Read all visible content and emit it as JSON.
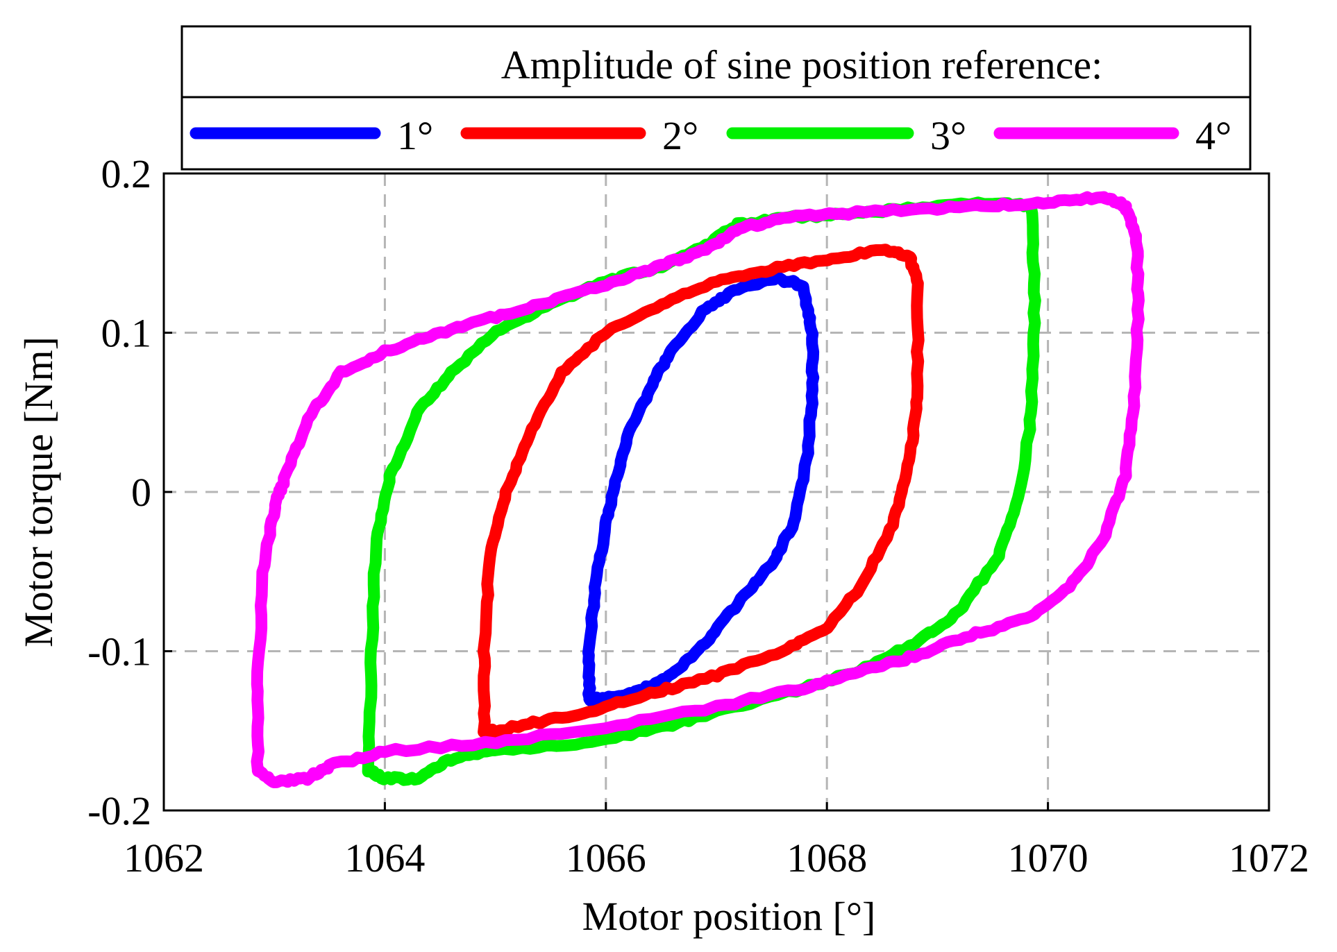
{
  "chart_data": {
    "type": "line",
    "title": "",
    "xlabel": "Motor position [°]",
    "ylabel": "Motor torque [Nm]",
    "xlim": [
      1062,
      1072
    ],
    "ylim": [
      -0.2,
      0.2
    ],
    "grid": true,
    "x_ticks": [
      1062,
      1064,
      1066,
      1068,
      1070,
      1072
    ],
    "x_tick_labels": [
      "1062",
      "1064",
      "1066",
      "1068",
      "1070",
      "1072"
    ],
    "y_ticks": [
      -0.2,
      -0.1,
      0,
      0.1,
      0.2
    ],
    "y_tick_labels": [
      "-0.2",
      "-0.1",
      "0",
      "0.1",
      "0.2"
    ],
    "legend": {
      "title": "Amplitude of sine position reference:",
      "placement": "top",
      "entries": [
        "1°",
        "2°",
        "3°",
        "4°"
      ]
    },
    "series": [
      {
        "name": "1°",
        "color": "#0000ff",
        "points": [
          [
            1065.85,
            -0.13
          ],
          [
            1065.85,
            -0.1
          ],
          [
            1065.9,
            -0.06
          ],
          [
            1066.0,
            -0.02
          ],
          [
            1066.1,
            0.01
          ],
          [
            1066.2,
            0.035
          ],
          [
            1066.4,
            0.065
          ],
          [
            1066.6,
            0.09
          ],
          [
            1066.9,
            0.115
          ],
          [
            1067.2,
            0.128
          ],
          [
            1067.55,
            0.134
          ],
          [
            1067.78,
            0.13
          ],
          [
            1067.87,
            0.1
          ],
          [
            1067.87,
            0.06
          ],
          [
            1067.82,
            0.02
          ],
          [
            1067.7,
            -0.02
          ],
          [
            1067.5,
            -0.045
          ],
          [
            1067.2,
            -0.07
          ],
          [
            1066.9,
            -0.095
          ],
          [
            1066.6,
            -0.115
          ],
          [
            1066.3,
            -0.125
          ],
          [
            1066.0,
            -0.13
          ],
          [
            1065.85,
            -0.13
          ]
        ]
      },
      {
        "name": "2°",
        "color": "#ff0000",
        "points": [
          [
            1064.9,
            -0.15
          ],
          [
            1064.9,
            -0.1
          ],
          [
            1064.95,
            -0.04
          ],
          [
            1065.1,
            0.0
          ],
          [
            1065.3,
            0.035
          ],
          [
            1065.6,
            0.075
          ],
          [
            1066.0,
            0.1
          ],
          [
            1066.5,
            0.118
          ],
          [
            1067.0,
            0.132
          ],
          [
            1067.5,
            0.14
          ],
          [
            1068.0,
            0.146
          ],
          [
            1068.5,
            0.152
          ],
          [
            1068.75,
            0.148
          ],
          [
            1068.82,
            0.13
          ],
          [
            1068.82,
            0.06
          ],
          [
            1068.75,
            0.02
          ],
          [
            1068.6,
            -0.02
          ],
          [
            1068.3,
            -0.06
          ],
          [
            1068.0,
            -0.085
          ],
          [
            1067.6,
            -0.1
          ],
          [
            1067.0,
            -0.115
          ],
          [
            1066.5,
            -0.125
          ],
          [
            1066.0,
            -0.135
          ],
          [
            1065.5,
            -0.143
          ],
          [
            1065.0,
            -0.15
          ],
          [
            1064.9,
            -0.15
          ]
        ]
      },
      {
        "name": "3°",
        "color": "#00f000",
        "points": [
          [
            1063.85,
            -0.175
          ],
          [
            1063.88,
            -0.1
          ],
          [
            1063.92,
            -0.03
          ],
          [
            1064.05,
            0.01
          ],
          [
            1064.3,
            0.05
          ],
          [
            1064.6,
            0.075
          ],
          [
            1065.0,
            0.1
          ],
          [
            1065.5,
            0.118
          ],
          [
            1066.0,
            0.132
          ],
          [
            1066.5,
            0.142
          ],
          [
            1066.9,
            0.155
          ],
          [
            1067.2,
            0.168
          ],
          [
            1067.6,
            0.172
          ],
          [
            1068.2,
            0.175
          ],
          [
            1068.8,
            0.178
          ],
          [
            1069.5,
            0.182
          ],
          [
            1069.85,
            0.18
          ],
          [
            1069.88,
            0.12
          ],
          [
            1069.85,
            0.05
          ],
          [
            1069.75,
            0.0
          ],
          [
            1069.55,
            -0.04
          ],
          [
            1069.2,
            -0.075
          ],
          [
            1068.8,
            -0.095
          ],
          [
            1068.3,
            -0.112
          ],
          [
            1067.8,
            -0.123
          ],
          [
            1067.0,
            -0.138
          ],
          [
            1066.5,
            -0.148
          ],
          [
            1065.8,
            -0.158
          ],
          [
            1065.0,
            -0.162
          ],
          [
            1064.6,
            -0.168
          ],
          [
            1064.3,
            -0.18
          ],
          [
            1064.0,
            -0.18
          ],
          [
            1063.85,
            -0.175
          ]
        ]
      },
      {
        "name": "4°",
        "color": "#ff00ff",
        "points": [
          [
            1062.85,
            -0.175
          ],
          [
            1062.85,
            -0.12
          ],
          [
            1062.9,
            -0.05
          ],
          [
            1063.0,
            -0.01
          ],
          [
            1063.1,
            0.01
          ],
          [
            1063.3,
            0.045
          ],
          [
            1063.6,
            0.075
          ],
          [
            1064.0,
            0.088
          ],
          [
            1064.5,
            0.1
          ],
          [
            1065.0,
            0.11
          ],
          [
            1065.5,
            0.12
          ],
          [
            1066.0,
            0.13
          ],
          [
            1066.5,
            0.142
          ],
          [
            1066.9,
            0.152
          ],
          [
            1067.2,
            0.165
          ],
          [
            1067.6,
            0.172
          ],
          [
            1068.2,
            0.175
          ],
          [
            1069.0,
            0.178
          ],
          [
            1069.5,
            0.18
          ],
          [
            1070.0,
            0.182
          ],
          [
            1070.5,
            0.185
          ],
          [
            1070.7,
            0.18
          ],
          [
            1070.8,
            0.16
          ],
          [
            1070.82,
            0.12
          ],
          [
            1070.78,
            0.06
          ],
          [
            1070.7,
            0.01
          ],
          [
            1070.5,
            -0.03
          ],
          [
            1070.2,
            -0.06
          ],
          [
            1069.8,
            -0.08
          ],
          [
            1069.3,
            -0.09
          ],
          [
            1068.8,
            -0.103
          ],
          [
            1068.3,
            -0.113
          ],
          [
            1067.8,
            -0.123
          ],
          [
            1067.0,
            -0.135
          ],
          [
            1066.0,
            -0.148
          ],
          [
            1065.0,
            -0.157
          ],
          [
            1064.0,
            -0.163
          ],
          [
            1063.5,
            -0.172
          ],
          [
            1063.3,
            -0.18
          ],
          [
            1063.0,
            -0.182
          ],
          [
            1062.85,
            -0.175
          ]
        ]
      }
    ]
  }
}
